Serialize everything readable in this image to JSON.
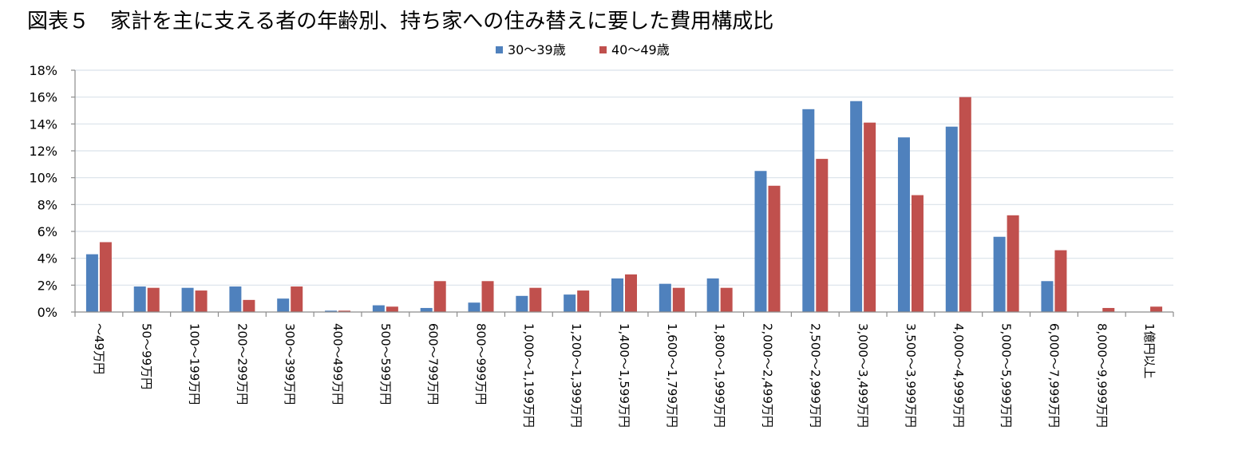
{
  "chart_data": {
    "type": "bar",
    "title": "図表５　家計を主に支える者の年齢別、持ち家への住み替えに要した費用構成比",
    "xlabel": "",
    "ylabel": "",
    "ylim": [
      0,
      18
    ],
    "yticks": [
      "0%",
      "2%",
      "4%",
      "6%",
      "8%",
      "10%",
      "12%",
      "14%",
      "16%",
      "18%"
    ],
    "grid": true,
    "legend_position": "top",
    "categories": [
      "～49万円",
      "50～99万円",
      "100～199万円",
      "200～299万円",
      "300～399万円",
      "400～499万円",
      "500～599万円",
      "600～799万円",
      "800～999万円",
      "1,000～1,199万円",
      "1,200～1,399万円",
      "1,400～1,599万円",
      "1,600～1,799万円",
      "1,800～1,999万円",
      "2,000～2,499万円",
      "2,500～2,999万円",
      "3,000～3,499万円",
      "3,500～3,999万円",
      "4,000～4,999万円",
      "5,000～5,999万円",
      "6,000～7,999万円",
      "8,000～9,999万円",
      "1億円以上"
    ],
    "series": [
      {
        "name": "30～39歳",
        "color": "#4f81bd",
        "values": [
          4.3,
          1.9,
          1.8,
          1.9,
          1.0,
          0.1,
          0.5,
          0.3,
          0.7,
          1.2,
          1.3,
          2.5,
          2.1,
          2.5,
          10.5,
          15.1,
          15.7,
          13.0,
          13.8,
          5.6,
          2.3,
          0.0,
          0.0
        ]
      },
      {
        "name": "40～49歳",
        "color": "#c0504d",
        "values": [
          5.2,
          1.8,
          1.6,
          0.9,
          1.9,
          0.1,
          0.4,
          2.3,
          2.3,
          1.8,
          1.6,
          2.8,
          1.8,
          1.8,
          9.4,
          11.4,
          14.1,
          8.7,
          16.0,
          7.2,
          4.6,
          0.3,
          0.4
        ]
      }
    ]
  }
}
